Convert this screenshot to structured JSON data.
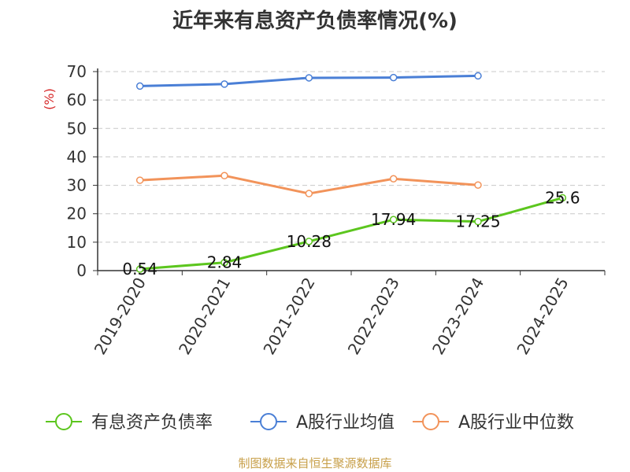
{
  "chart_data": {
    "type": "line",
    "title": "近年来有息资产负债率情况(%)",
    "ylabel": "(%)",
    "xlabel": "",
    "ylim": [
      0,
      70
    ],
    "yticks": [
      0,
      10,
      20,
      30,
      40,
      50,
      60,
      70
    ],
    "grid": true,
    "legend_position": "bottom",
    "categories": [
      "2019-2020",
      "2020-2021",
      "2021-2022",
      "2022-2023",
      "2023-2024",
      "2024-2025"
    ],
    "series": [
      {
        "name": "有息资产负债率",
        "color": "#5cc61e",
        "values": [
          0.54,
          2.84,
          10.28,
          17.94,
          17.25,
          25.6
        ],
        "labels": [
          "0.54",
          "2.84",
          "10.28",
          "17.94",
          "17.25",
          "25.6"
        ]
      },
      {
        "name": "A股行业均值",
        "color": "#4a7fd6",
        "values": [
          64.9,
          65.6,
          67.8,
          67.9,
          68.5,
          null
        ]
      },
      {
        "name": "A股行业中位数",
        "color": "#f2935a",
        "values": [
          31.8,
          33.4,
          27.1,
          32.3,
          30.1,
          null
        ]
      }
    ],
    "source": "制图数据来自恒生聚源数据库"
  }
}
